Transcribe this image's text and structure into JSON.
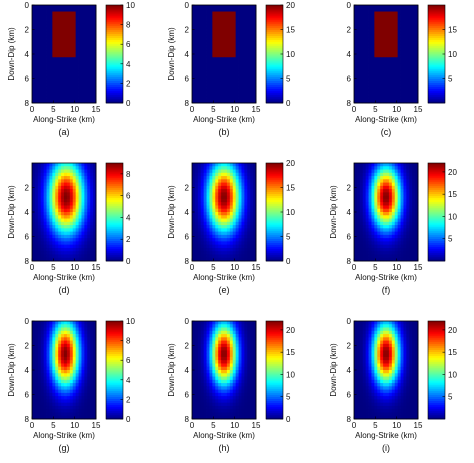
{
  "chart_data": [
    {
      "panel": "(a)",
      "type": "heatmap",
      "field": "uniform-box",
      "xlabel": "Along-Strike (km)",
      "ylabel": "Down-Dip (km)",
      "xlim": [
        0,
        15
      ],
      "ylim": [
        8,
        0
      ],
      "xticks": [
        "0",
        "5",
        "10",
        "15"
      ],
      "yticks": [
        "0",
        "2",
        "4",
        "6",
        "8"
      ],
      "vmax": 10,
      "cticks": [
        "0",
        "2",
        "4",
        "6",
        "8",
        "10"
      ],
      "box": {
        "x": [
          4.7,
          9.9
        ],
        "y": [
          0.6,
          4.3
        ],
        "value": 10
      }
    },
    {
      "panel": "(b)",
      "type": "heatmap",
      "field": "uniform-box",
      "xlabel": "Along-Strike (km)",
      "ylabel": "Down-Dip (km)",
      "xlim": [
        0,
        15
      ],
      "ylim": [
        8,
        0
      ],
      "xticks": [
        "0",
        "5",
        "10",
        "15"
      ],
      "yticks": [
        "0",
        "2",
        "4",
        "6",
        "8"
      ],
      "vmax": 20,
      "cticks": [
        "0",
        "5",
        "10",
        "15",
        "20"
      ],
      "box": {
        "x": [
          4.7,
          9.9
        ],
        "y": [
          0.6,
          4.3
        ],
        "value": 20
      }
    },
    {
      "panel": "(c)",
      "type": "heatmap",
      "field": "uniform-box",
      "xlabel": "Along-Strike (km)",
      "ylabel": "",
      "xlim": [
        0,
        15
      ],
      "ylim": [
        8,
        0
      ],
      "xticks": [
        "0",
        "5",
        "10",
        "15"
      ],
      "yticks": [
        "0",
        "2",
        "4",
        "6",
        "8"
      ],
      "vmax": 20,
      "cticks": [
        "5",
        "10",
        "15"
      ],
      "box": {
        "x": [
          4.7,
          9.9
        ],
        "y": [
          0.6,
          4.3
        ],
        "value": 20
      }
    },
    {
      "panel": "(d)",
      "type": "heatmap",
      "field": "gaussian",
      "xlabel": "Along-Strike (km)",
      "ylabel": "Down-Dip (km)",
      "xlim": [
        0,
        15
      ],
      "ylim": [
        8,
        0
      ],
      "xticks": [
        "0",
        "5",
        "10",
        "15"
      ],
      "yticks": [
        "2",
        "4",
        "6",
        "8"
      ],
      "vmax": 9,
      "cticks": [
        "0",
        "2",
        "4",
        "6",
        "8"
      ],
      "peak": {
        "x": 8.0,
        "y": 2.8,
        "value": 9
      },
      "spread": {
        "x": 2.8,
        "y": 2.0
      }
    },
    {
      "panel": "(e)",
      "type": "heatmap",
      "field": "gaussian",
      "xlabel": "Along-Strike (km)",
      "ylabel": "Down-Dip (km)",
      "xlim": [
        0,
        15
      ],
      "ylim": [
        8,
        0
      ],
      "xticks": [
        "0",
        "5",
        "10",
        "15"
      ],
      "yticks": [
        "2",
        "4",
        "6",
        "8"
      ],
      "vmax": 20,
      "cticks": [
        "0",
        "5",
        "10",
        "15",
        "20"
      ],
      "peak": {
        "x": 7.5,
        "y": 2.8,
        "value": 20
      },
      "spread": {
        "x": 2.6,
        "y": 1.9
      }
    },
    {
      "panel": "(f)",
      "type": "heatmap",
      "field": "gaussian",
      "xlabel": "Along-Strike (km)",
      "ylabel": "Down-Dip (km)",
      "xlim": [
        0,
        15
      ],
      "ylim": [
        8,
        0
      ],
      "xticks": [
        "0",
        "5",
        "10",
        "15"
      ],
      "yticks": [
        "2",
        "4",
        "6",
        "8"
      ],
      "vmax": 22,
      "cticks": [
        "5",
        "10",
        "15",
        "20"
      ],
      "peak": {
        "x": 7.5,
        "y": 2.8,
        "value": 22
      },
      "spread": {
        "x": 2.3,
        "y": 1.7
      }
    },
    {
      "panel": "(g)",
      "type": "heatmap",
      "field": "gaussian",
      "xlabel": "Along-Strike (km)",
      "ylabel": "Down-Dip (km)",
      "xlim": [
        0,
        15
      ],
      "ylim": [
        8,
        0
      ],
      "xticks": [
        "0",
        "5",
        "10",
        "15"
      ],
      "yticks": [
        "0",
        "2",
        "4",
        "6",
        "8"
      ],
      "vmax": 10,
      "cticks": [
        "0",
        "2",
        "4",
        "6",
        "8",
        "10"
      ],
      "peak": {
        "x": 7.8,
        "y": 2.7,
        "value": 10
      },
      "spread": {
        "x": 2.2,
        "y": 1.8
      }
    },
    {
      "panel": "(h)",
      "type": "heatmap",
      "field": "gaussian",
      "xlabel": "Along-Strike (km)",
      "ylabel": "Down-Dip (km)",
      "xlim": [
        0,
        15
      ],
      "ylim": [
        8,
        0
      ],
      "xticks": [
        "0",
        "5",
        "10",
        "15"
      ],
      "yticks": [
        "0",
        "2",
        "4",
        "6",
        "8"
      ],
      "vmax": 22,
      "cticks": [
        "0",
        "5",
        "10",
        "15",
        "20"
      ],
      "peak": {
        "x": 7.5,
        "y": 2.7,
        "value": 22
      },
      "spread": {
        "x": 2.1,
        "y": 1.7
      }
    },
    {
      "panel": "(i)",
      "type": "heatmap",
      "field": "gaussian",
      "xlabel": "Along-Strike (km)",
      "ylabel": "Down-Dip (km)",
      "xlim": [
        0,
        15
      ],
      "ylim": [
        8,
        0
      ],
      "xticks": [
        "0",
        "5",
        "10",
        "15"
      ],
      "yticks": [
        "0",
        "2",
        "4",
        "6",
        "8"
      ],
      "vmax": 22,
      "cticks": [
        "5",
        "10",
        "15",
        "20"
      ],
      "peak": {
        "x": 7.5,
        "y": 2.7,
        "value": 22
      },
      "spread": {
        "x": 2.1,
        "y": 1.7
      }
    }
  ],
  "colormap": "jet"
}
